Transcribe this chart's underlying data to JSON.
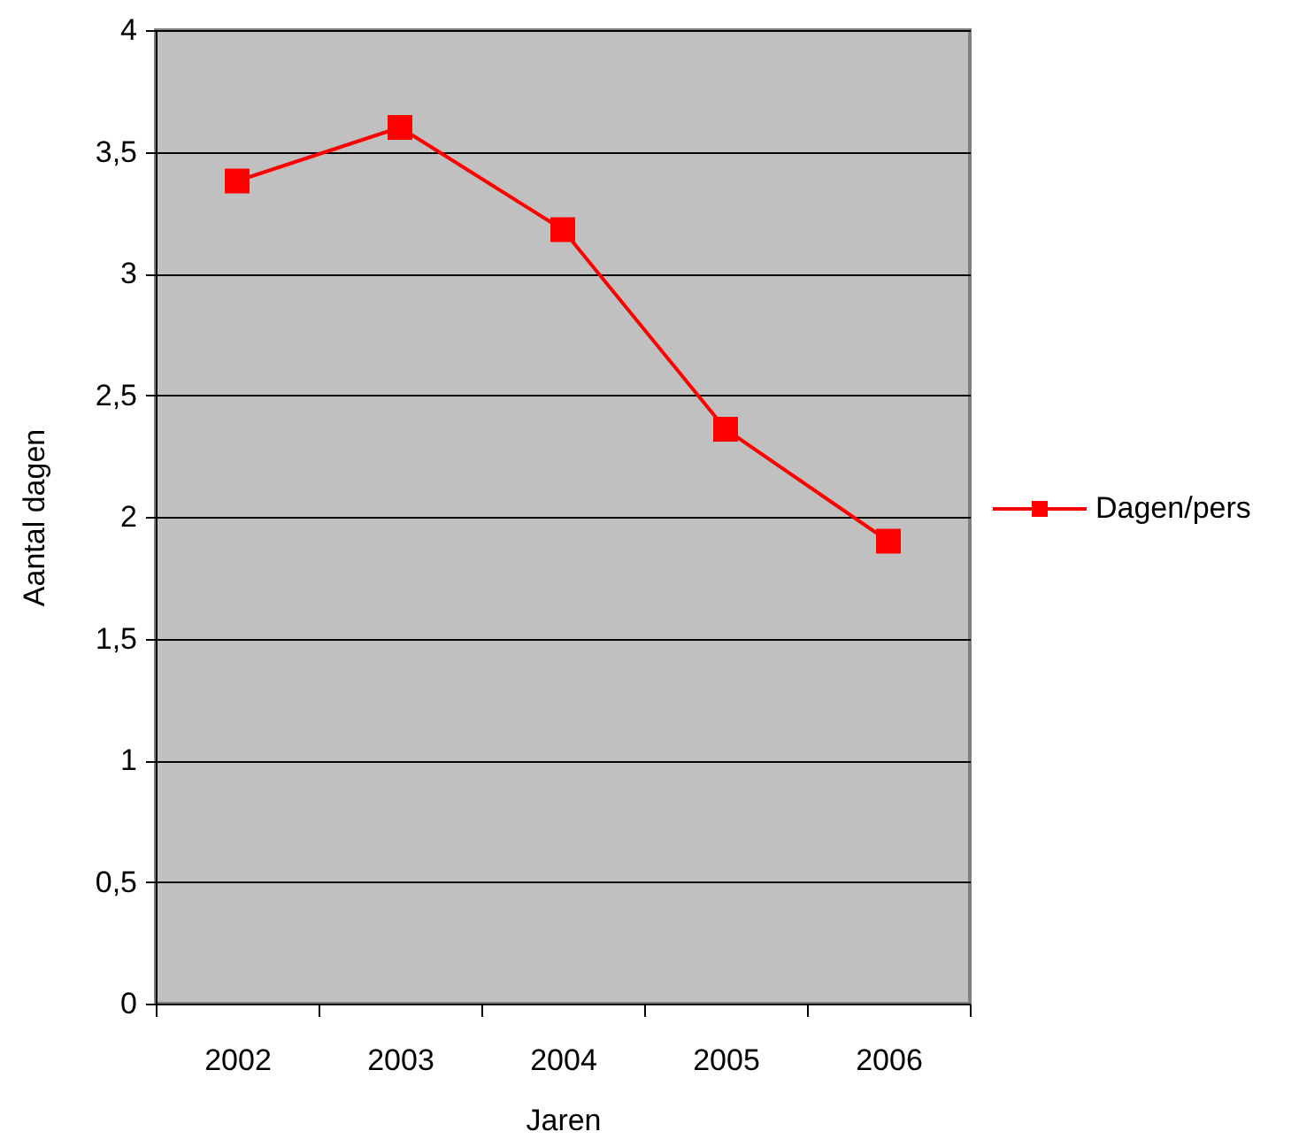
{
  "chart_data": {
    "type": "line",
    "xlabel": "Jaren",
    "ylabel": "Aantal dagen",
    "categories": [
      "2002",
      "2003",
      "2004",
      "2005",
      "2006"
    ],
    "series": [
      {
        "name": "Dagen/pers",
        "color": "#ff0000",
        "values": [
          3.38,
          3.6,
          3.18,
          2.36,
          1.9
        ]
      }
    ],
    "ylim": [
      0,
      4
    ],
    "yticks": [
      0,
      {
        "value": 0.5,
        "label": "0,5"
      },
      1,
      {
        "value": 1.5,
        "label": "1,5"
      },
      2,
      {
        "value": 2.5,
        "label": "2,5"
      },
      3,
      {
        "value": 3.5,
        "label": "3,5"
      },
      4
    ],
    "grid": "y",
    "legend": "right",
    "marker": "square",
    "line_style": "solid"
  }
}
